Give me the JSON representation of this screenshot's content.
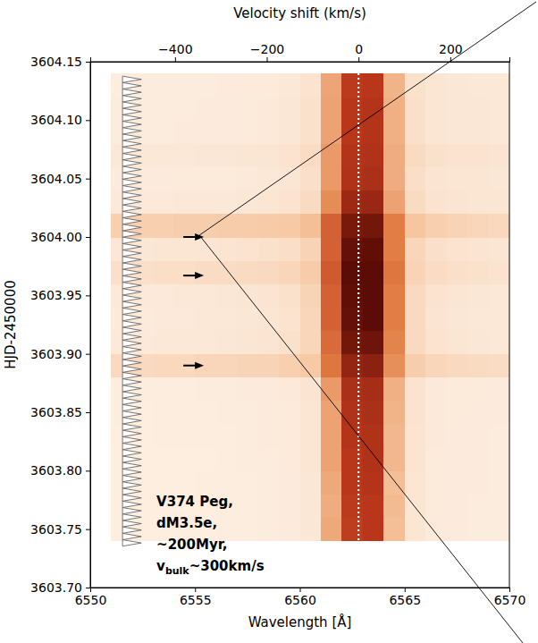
{
  "chart_data": {
    "type": "heatmap",
    "xlabel": "Wavelength [Å]",
    "ylabel": "HJD-2450000",
    "x2label": "Velocity shift (km/s)",
    "xlim": [
      6550,
      6570
    ],
    "xticks": [
      6550,
      6555,
      6560,
      6565,
      6570
    ],
    "ylim": [
      3603.7,
      3604.15
    ],
    "yticks": [
      {
        "value": 3603.7,
        "label": "3603.70"
      },
      3603.75,
      {
        "value": 3603.8,
        "label": "3603.80"
      },
      3603.85,
      {
        "value": 3603.9,
        "label": "3603.90"
      },
      3603.95,
      {
        "value": 3604.0,
        "label": "3604.00"
      },
      3604.05,
      {
        "value": 3604.1,
        "label": "3604.10"
      },
      3604.15
    ],
    "x2lim": [
      -584.7,
      328.9
    ],
    "x2ticks": [
      {
        "value": -400,
        "label": "−400"
      },
      {
        "value": -200,
        "label": "−200"
      },
      0,
      200
    ],
    "x_edges": [
      6551,
      6552,
      6553,
      6554,
      6555,
      6556,
      6557,
      6558,
      6559,
      6560,
      6561,
      6562,
      6563,
      6564,
      6565,
      6566,
      6567,
      6568,
      6569,
      6570
    ],
    "y_edges": [
      3603.74,
      3603.76,
      3603.78,
      3603.8,
      3603.82,
      3603.84,
      3603.86,
      3603.88,
      3603.9,
      3603.92,
      3603.94,
      3603.96,
      3603.98,
      3604.0,
      3604.02,
      3604.04,
      3604.06,
      3604.08,
      3604.1,
      3604.12,
      3604.14
    ],
    "zlim": [
      0,
      1
    ],
    "z": [
      [
        0.12,
        0.12,
        0.12,
        0.12,
        0.12,
        0.13,
        0.13,
        0.14,
        0.15,
        0.19,
        0.48,
        0.78,
        0.8,
        0.42,
        0.2,
        0.16,
        0.15,
        0.14,
        0.14
      ],
      [
        0.12,
        0.12,
        0.12,
        0.12,
        0.12,
        0.13,
        0.13,
        0.14,
        0.15,
        0.19,
        0.47,
        0.79,
        0.8,
        0.43,
        0.2,
        0.16,
        0.15,
        0.14,
        0.14
      ],
      [
        0.12,
        0.12,
        0.12,
        0.12,
        0.13,
        0.13,
        0.13,
        0.14,
        0.15,
        0.19,
        0.48,
        0.8,
        0.81,
        0.42,
        0.2,
        0.16,
        0.15,
        0.15,
        0.14
      ],
      [
        0.12,
        0.12,
        0.12,
        0.12,
        0.12,
        0.13,
        0.14,
        0.14,
        0.16,
        0.2,
        0.5,
        0.8,
        0.82,
        0.44,
        0.21,
        0.16,
        0.15,
        0.15,
        0.14
      ],
      [
        0.12,
        0.12,
        0.13,
        0.13,
        0.13,
        0.13,
        0.14,
        0.15,
        0.16,
        0.2,
        0.5,
        0.81,
        0.82,
        0.44,
        0.21,
        0.17,
        0.15,
        0.15,
        0.14
      ],
      [
        0.13,
        0.12,
        0.13,
        0.13,
        0.13,
        0.14,
        0.14,
        0.15,
        0.16,
        0.2,
        0.5,
        0.82,
        0.83,
        0.45,
        0.22,
        0.17,
        0.16,
        0.15,
        0.15
      ],
      [
        0.13,
        0.13,
        0.13,
        0.13,
        0.14,
        0.14,
        0.15,
        0.15,
        0.17,
        0.21,
        0.52,
        0.83,
        0.84,
        0.46,
        0.22,
        0.17,
        0.16,
        0.16,
        0.15
      ],
      [
        0.28,
        0.28,
        0.29,
        0.29,
        0.3,
        0.3,
        0.31,
        0.32,
        0.34,
        0.38,
        0.62,
        0.88,
        0.9,
        0.55,
        0.35,
        0.3,
        0.28,
        0.27,
        0.26
      ],
      [
        0.17,
        0.17,
        0.18,
        0.18,
        0.18,
        0.19,
        0.2,
        0.21,
        0.23,
        0.3,
        0.65,
        0.95,
        0.96,
        0.58,
        0.28,
        0.22,
        0.2,
        0.19,
        0.18
      ],
      [
        0.16,
        0.16,
        0.17,
        0.17,
        0.18,
        0.18,
        0.19,
        0.2,
        0.22,
        0.3,
        0.68,
        0.98,
        1.0,
        0.6,
        0.28,
        0.21,
        0.19,
        0.18,
        0.18
      ],
      [
        0.17,
        0.17,
        0.17,
        0.18,
        0.18,
        0.19,
        0.2,
        0.21,
        0.23,
        0.31,
        0.68,
        0.99,
        1.0,
        0.6,
        0.28,
        0.22,
        0.2,
        0.19,
        0.18
      ],
      [
        0.24,
        0.24,
        0.25,
        0.25,
        0.26,
        0.26,
        0.27,
        0.28,
        0.3,
        0.36,
        0.7,
        1.0,
        1.0,
        0.62,
        0.32,
        0.26,
        0.24,
        0.23,
        0.22
      ],
      [
        0.19,
        0.19,
        0.2,
        0.2,
        0.2,
        0.21,
        0.22,
        0.23,
        0.25,
        0.32,
        0.68,
        0.98,
        0.99,
        0.6,
        0.3,
        0.24,
        0.22,
        0.21,
        0.2
      ],
      [
        0.34,
        0.34,
        0.34,
        0.35,
        0.35,
        0.36,
        0.36,
        0.37,
        0.38,
        0.42,
        0.68,
        0.94,
        0.95,
        0.6,
        0.4,
        0.34,
        0.32,
        0.3,
        0.29
      ],
      [
        0.17,
        0.17,
        0.17,
        0.18,
        0.18,
        0.18,
        0.19,
        0.2,
        0.22,
        0.27,
        0.56,
        0.86,
        0.87,
        0.5,
        0.27,
        0.22,
        0.21,
        0.2,
        0.2
      ],
      [
        0.15,
        0.15,
        0.15,
        0.16,
        0.16,
        0.16,
        0.17,
        0.18,
        0.2,
        0.24,
        0.52,
        0.82,
        0.83,
        0.47,
        0.25,
        0.21,
        0.2,
        0.2,
        0.19
      ],
      [
        0.18,
        0.18,
        0.18,
        0.18,
        0.19,
        0.19,
        0.2,
        0.2,
        0.22,
        0.26,
        0.52,
        0.81,
        0.82,
        0.47,
        0.27,
        0.23,
        0.22,
        0.22,
        0.21
      ],
      [
        0.14,
        0.14,
        0.14,
        0.15,
        0.15,
        0.15,
        0.16,
        0.17,
        0.19,
        0.23,
        0.5,
        0.8,
        0.81,
        0.46,
        0.24,
        0.2,
        0.19,
        0.19,
        0.18
      ],
      [
        0.14,
        0.14,
        0.14,
        0.14,
        0.15,
        0.15,
        0.16,
        0.17,
        0.19,
        0.23,
        0.5,
        0.8,
        0.81,
        0.46,
        0.24,
        0.2,
        0.19,
        0.19,
        0.18
      ],
      [
        0.13,
        0.14,
        0.14,
        0.14,
        0.14,
        0.15,
        0.16,
        0.16,
        0.18,
        0.22,
        0.49,
        0.79,
        0.8,
        0.45,
        0.23,
        0.2,
        0.19,
        0.18,
        0.18
      ]
    ],
    "reference_line": 6562.8,
    "arrow_times": [
      3604.0,
      3603.967,
      3603.89
    ],
    "annotation": [
      "V374 Peg,",
      "dM3.5e,",
      "~200Myr,",
      {
        "text": "v",
        "sub": "bulk",
        "rest": "~300km/s"
      }
    ]
  }
}
